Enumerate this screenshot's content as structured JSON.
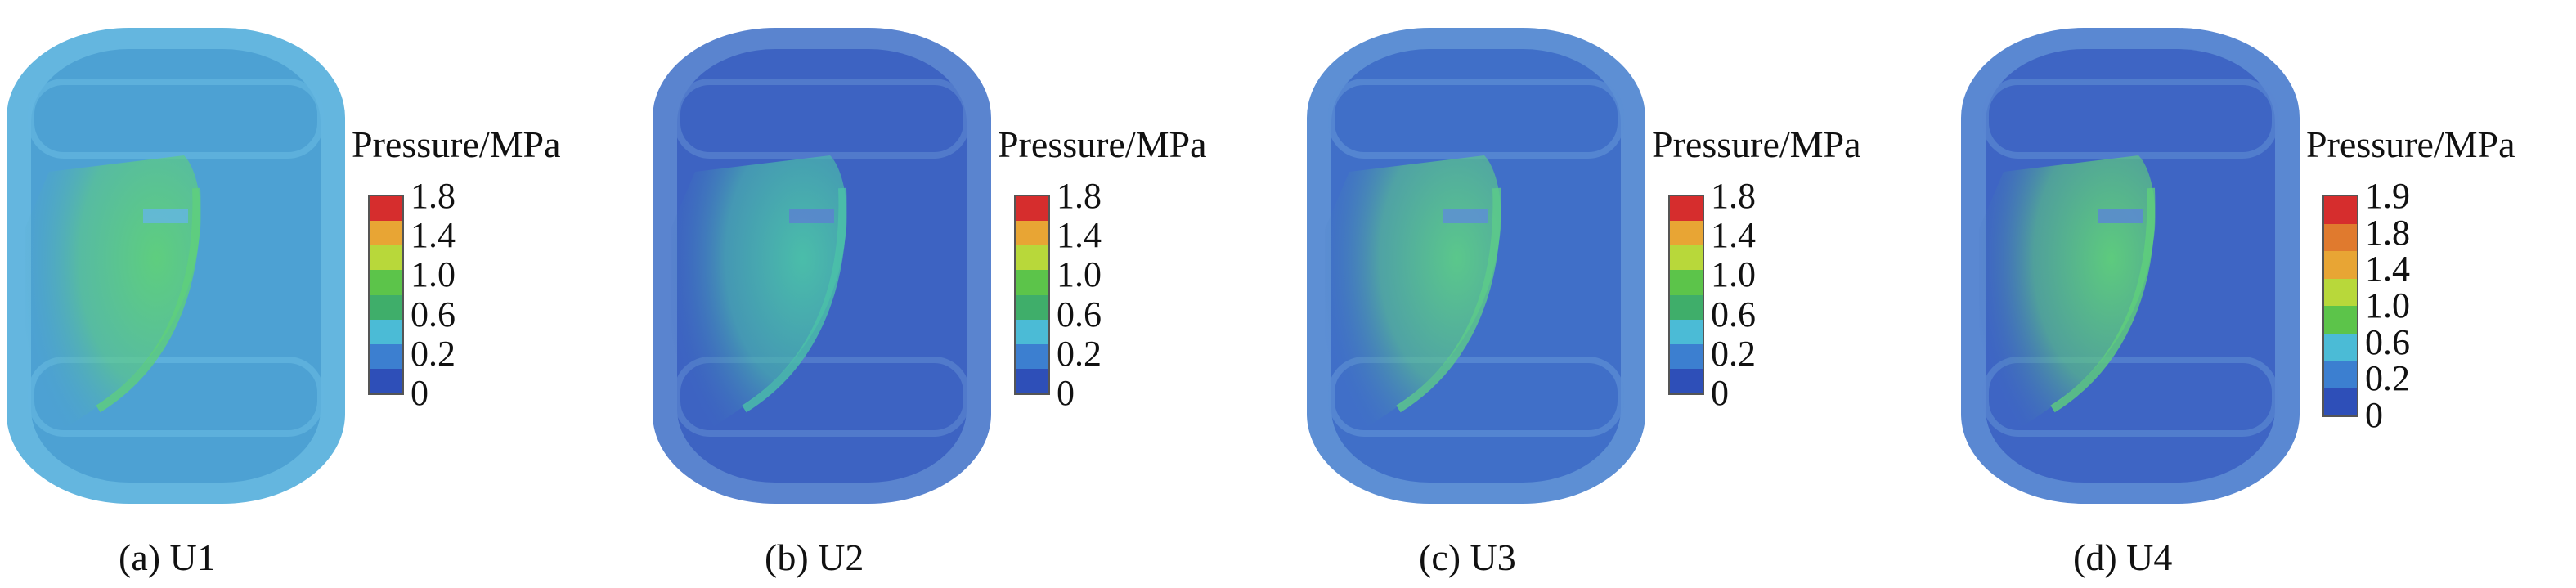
{
  "legend_title": "Pressure/MPa",
  "panels": [
    {
      "caption": "(a) U1",
      "ticks": [
        "1.8",
        "1.4",
        "1.0",
        "0.6",
        "0.2",
        "0"
      ],
      "colors": [
        "#d62d2d",
        "#e8a534",
        "#b8d83a",
        "#5cc44a",
        "#3fae6a",
        "#4bbbd6",
        "#3c7fd0",
        "#2e4fb8"
      ],
      "base": "#4a9fd2",
      "wall": "#64b6df",
      "plume": "#5fd07a"
    },
    {
      "caption": "(b) U2",
      "ticks": [
        "1.8",
        "1.4",
        "1.0",
        "0.6",
        "0.2",
        "0"
      ],
      "colors": [
        "#d62d2d",
        "#e8a534",
        "#b8d83a",
        "#5cc44a",
        "#3fae6a",
        "#4bbbd6",
        "#3c7fd0",
        "#2e4fb8"
      ],
      "base": "#3a5fc0",
      "wall": "#5a84cf",
      "plume": "#4bc2a8"
    },
    {
      "caption": "(c) U3",
      "ticks": [
        "1.8",
        "1.4",
        "1.0",
        "0.6",
        "0.2",
        "0"
      ],
      "colors": [
        "#d62d2d",
        "#e8a534",
        "#b8d83a",
        "#5cc44a",
        "#3fae6a",
        "#4bbbd6",
        "#3c7fd0",
        "#2e4fb8"
      ],
      "base": "#3d6bc6",
      "wall": "#5d8fd4",
      "plume": "#5ccc88"
    },
    {
      "caption": "(d) U4",
      "ticks": [
        "1.9",
        "1.8",
        "1.4",
        "1.0",
        "0.6",
        "0.2",
        "0"
      ],
      "colors": [
        "#d62d2d",
        "#e07a2e",
        "#e8a534",
        "#b8d83a",
        "#5cc44a",
        "#4bbbd6",
        "#3c7fd0",
        "#2e4fb8"
      ],
      "base": "#3b62c2",
      "wall": "#5a88d2",
      "plume": "#5fd07a"
    }
  ]
}
